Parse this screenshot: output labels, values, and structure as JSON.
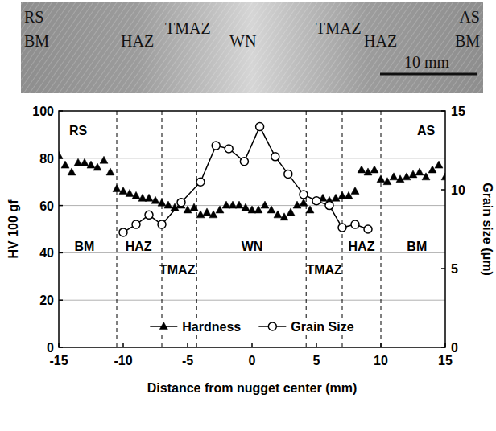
{
  "image_labels": {
    "labels": [
      "RS",
      "BM",
      "HAZ",
      "TMAZ",
      "WN",
      "TMAZ",
      "HAZ",
      "AS",
      "BM"
    ],
    "scale_bar": "10 mm"
  },
  "chart_data": {
    "type": "scatter",
    "x_label": "Distance from nugget center (mm)",
    "y_label": "HV 100 gf",
    "y2_label": "Grain size (μm)",
    "xlim": [
      -15,
      15
    ],
    "xticks": [
      -15,
      -10,
      -5,
      0,
      5,
      10,
      15
    ],
    "ylim": [
      0,
      100
    ],
    "yticks": [
      0,
      20,
      40,
      60,
      80,
      100
    ],
    "y2lim": [
      0,
      15
    ],
    "y2ticks": [
      0,
      5,
      10,
      15
    ],
    "grid": true,
    "legend": "bottom",
    "zone_boundaries": [
      -10.5,
      -7,
      -4.3,
      4.2,
      7,
      10
    ],
    "annotations": [
      {
        "text": "RS",
        "x": -13.5,
        "y": 92
      },
      {
        "text": "AS",
        "x": 13.5,
        "y": 92
      },
      {
        "text": "BM",
        "x": -13,
        "y": 43
      },
      {
        "text": "HAZ",
        "x": -8.8,
        "y": 43
      },
      {
        "text": "TMAZ",
        "x": -5.8,
        "y": 33
      },
      {
        "text": "WN",
        "x": 0,
        "y": 43
      },
      {
        "text": "TMAZ",
        "x": 5.6,
        "y": 33
      },
      {
        "text": "HAZ",
        "x": 8.5,
        "y": 43
      },
      {
        "text": "BM",
        "x": 12.8,
        "y": 43
      }
    ],
    "series": [
      {
        "name": "Hardness",
        "color": "#000000",
        "marker": "triangle",
        "line_style": "none",
        "x": [
          -15,
          -14.5,
          -14,
          -13.5,
          -13,
          -12.5,
          -12,
          -11.5,
          -11,
          -10.5,
          -10,
          -9.5,
          -9,
          -8.5,
          -8,
          -7.5,
          -7,
          -6.5,
          -6,
          -5.5,
          -5,
          -4.5,
          -4,
          -3.5,
          -3,
          -2.5,
          -2,
          -1.5,
          -1,
          -0.5,
          0,
          0.5,
          1,
          1.5,
          2,
          2.5,
          3,
          3.5,
          4,
          4.5,
          5,
          5.5,
          6,
          6.5,
          7,
          7.5,
          8,
          8.5,
          9,
          9.5,
          10,
          10.5,
          11,
          11.5,
          12,
          12.5,
          13,
          13.5,
          14,
          14.5,
          15
        ],
        "values": [
          81,
          77,
          74,
          78,
          78,
          77,
          76,
          79,
          74,
          67,
          66,
          65,
          64,
          63,
          63,
          62,
          61,
          60,
          59,
          60,
          58,
          59,
          56,
          57,
          56,
          58,
          60,
          60,
          60,
          59,
          58,
          58,
          60,
          58,
          56,
          55,
          57,
          60,
          61,
          58,
          62,
          63,
          62,
          63,
          64,
          64,
          66,
          75,
          74,
          75,
          71,
          70,
          72,
          71,
          72,
          73,
          74,
          72,
          75,
          77,
          72
        ]
      },
      {
        "name": "Grain Size",
        "color": "#000000",
        "marker": "circle",
        "line_style": "solid",
        "axis": "y2",
        "x": [
          -10,
          -9,
          -8,
          -7,
          -5.5,
          -4,
          -2.8,
          -1.8,
          -0.6,
          0.6,
          1.8,
          2.8,
          4,
          5,
          6,
          7,
          8,
          9
        ],
        "values": [
          7.3,
          7.8,
          8.4,
          7.8,
          9.2,
          10.5,
          12.8,
          12.6,
          11.8,
          14.0,
          12.1,
          11.0,
          9.7,
          9.3,
          9.0,
          7.6,
          7.8,
          7.5
        ]
      }
    ]
  }
}
